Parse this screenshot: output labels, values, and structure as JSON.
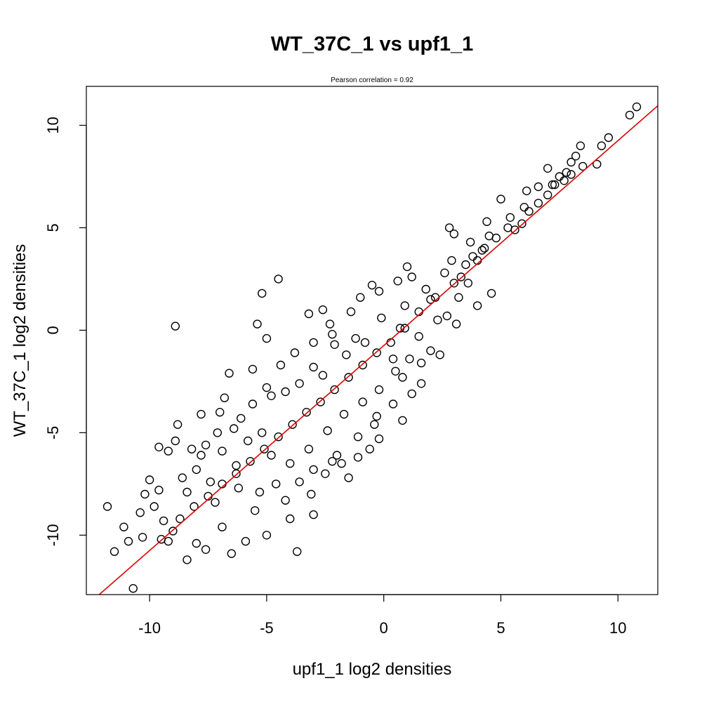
{
  "chart_data": {
    "type": "scatter",
    "title": "WT_37C_1 vs upf1_1",
    "subtitle": "Pearson correlation =  0.92",
    "xlabel": "upf1_1 log2 densities",
    "ylabel": "WT_37C_1 log2 densities",
    "xlim": [
      -12.7,
      11.7
    ],
    "ylim": [
      -12.9,
      11.9
    ],
    "x_ticks": [
      -10,
      -5,
      0,
      5,
      10
    ],
    "x_tick_labels": [
      "-10",
      "-5",
      "0",
      "5",
      "10"
    ],
    "y_ticks": [
      -10,
      -5,
      0,
      5,
      10
    ],
    "y_tick_labels": [
      "-10",
      "-5",
      "0",
      "5",
      "10"
    ],
    "grid": false,
    "point_style": "open-circle",
    "point_color": "#000000",
    "fit_line": {
      "color": "#dd0000",
      "slope": 1.0,
      "intercept": -0.75
    },
    "points": [
      [
        10.8,
        10.9
      ],
      [
        10.5,
        10.5
      ],
      [
        9.6,
        9.4
      ],
      [
        9.3,
        9.0
      ],
      [
        9.1,
        8.1
      ],
      [
        8.4,
        9.0
      ],
      [
        8.2,
        8.5
      ],
      [
        8.0,
        8.2
      ],
      [
        7.8,
        7.7
      ],
      [
        8.5,
        8.0
      ],
      [
        7.5,
        7.5
      ],
      [
        7.0,
        7.9
      ],
      [
        6.6,
        7.0
      ],
      [
        6.1,
        6.8
      ],
      [
        7.2,
        7.1
      ],
      [
        5.0,
        6.4
      ],
      [
        5.9,
        5.2
      ],
      [
        4.5,
        4.6
      ],
      [
        4.3,
        4.0
      ],
      [
        3.8,
        3.6
      ],
      [
        2.8,
        5.0
      ],
      [
        3.0,
        4.7
      ],
      [
        4.0,
        3.4
      ],
      [
        3.6,
        2.3
      ],
      [
        4.6,
        1.8
      ],
      [
        4.0,
        1.2
      ],
      [
        3.2,
        1.6
      ],
      [
        2.7,
        0.7
      ],
      [
        2.3,
        0.5
      ],
      [
        2.0,
        1.5
      ],
      [
        1.0,
        3.1
      ],
      [
        0.6,
        2.4
      ],
      [
        -0.2,
        1.9
      ],
      [
        -0.5,
        2.2
      ],
      [
        -1.0,
        1.6
      ],
      [
        1.2,
        2.6
      ],
      [
        -4.5,
        2.5
      ],
      [
        -5.2,
        1.8
      ],
      [
        -5.4,
        0.3
      ],
      [
        -8.9,
        0.2
      ],
      [
        -2.6,
        1.0
      ],
      [
        -3.2,
        0.8
      ],
      [
        -5.0,
        -0.4
      ],
      [
        -2.2,
        -0.2
      ],
      [
        0.7,
        0.1
      ],
      [
        1.5,
        -0.3
      ],
      [
        2.0,
        -1.0
      ],
      [
        1.6,
        -1.6
      ],
      [
        0.4,
        -1.4
      ],
      [
        -0.8,
        -0.6
      ],
      [
        -6.6,
        -2.1
      ],
      [
        -5.6,
        -1.9
      ],
      [
        -6.8,
        -3.3
      ],
      [
        -7.8,
        -4.1
      ],
      [
        -8.8,
        -4.6
      ],
      [
        -9.6,
        -5.7
      ],
      [
        -9.2,
        -5.9
      ],
      [
        -8.9,
        -5.4
      ],
      [
        -8.2,
        -5.8
      ],
      [
        -10.0,
        -7.3
      ],
      [
        -9.6,
        -7.8
      ],
      [
        -10.2,
        -8.0
      ],
      [
        -9.8,
        -8.6
      ],
      [
        -10.4,
        -8.9
      ],
      [
        -9.4,
        -9.3
      ],
      [
        -9.0,
        -9.8
      ],
      [
        -9.5,
        -10.2
      ],
      [
        -10.3,
        -10.1
      ],
      [
        -10.9,
        -10.3
      ],
      [
        -11.1,
        -9.6
      ],
      [
        -11.8,
        -8.6
      ],
      [
        -11.5,
        -10.8
      ],
      [
        -10.7,
        -12.6
      ],
      [
        -9.2,
        -10.3
      ],
      [
        -8.4,
        -11.2
      ],
      [
        -8.0,
        -10.4
      ],
      [
        -7.6,
        -10.7
      ],
      [
        -6.5,
        -10.9
      ],
      [
        -5.9,
        -10.3
      ],
      [
        -5.0,
        -10.0
      ],
      [
        -3.7,
        -10.8
      ],
      [
        -3.0,
        -9.0
      ],
      [
        -4.0,
        -9.2
      ],
      [
        -5.5,
        -8.8
      ],
      [
        -6.9,
        -9.6
      ],
      [
        -7.2,
        -8.4
      ],
      [
        -6.2,
        -7.7
      ],
      [
        -4.6,
        -7.5
      ],
      [
        -3.6,
        -7.4
      ],
      [
        -2.5,
        -7.0
      ],
      [
        -1.5,
        -7.2
      ],
      [
        -1.8,
        -6.5
      ],
      [
        -0.6,
        -5.8
      ],
      [
        0.4,
        -3.6
      ],
      [
        1.2,
        -3.1
      ],
      [
        0.8,
        -2.3
      ],
      [
        -0.3,
        -4.2
      ],
      [
        -0.4,
        -4.6
      ],
      [
        -1.1,
        -5.2
      ],
      [
        -2.0,
        -6.1
      ],
      [
        -3.0,
        -6.8
      ],
      [
        -4.0,
        -6.5
      ],
      [
        -4.8,
        -6.1
      ],
      [
        -5.8,
        -5.4
      ],
      [
        -6.4,
        -4.8
      ],
      [
        -7.0,
        -4.0
      ],
      [
        -7.6,
        -5.6
      ],
      [
        -6.9,
        -5.9
      ],
      [
        -8.0,
        -6.8
      ],
      [
        -8.6,
        -7.2
      ],
      [
        -7.4,
        -7.4
      ],
      [
        -6.3,
        -6.6
      ],
      [
        -5.2,
        -5.0
      ],
      [
        -4.8,
        -3.2
      ],
      [
        -3.6,
        -2.6
      ],
      [
        -3.0,
        -1.8
      ],
      [
        -2.6,
        -2.2
      ],
      [
        -1.6,
        -1.2
      ],
      [
        -2.1,
        -0.7
      ],
      [
        -1.2,
        -0.4
      ],
      [
        -0.1,
        0.6
      ],
      [
        0.9,
        1.2
      ],
      [
        1.8,
        2.0
      ],
      [
        2.6,
        2.8
      ],
      [
        3.3,
        2.6
      ],
      [
        2.9,
        3.4
      ],
      [
        3.7,
        4.3
      ],
      [
        4.4,
        5.3
      ],
      [
        5.3,
        5.0
      ],
      [
        5.6,
        4.9
      ],
      [
        6.2,
        5.8
      ],
      [
        6.6,
        6.2
      ],
      [
        7.0,
        6.6
      ],
      [
        7.3,
        7.1
      ],
      [
        7.7,
        7.3
      ],
      [
        8.0,
        7.6
      ],
      [
        6.0,
        6.0
      ],
      [
        5.4,
        5.5
      ],
      [
        4.8,
        4.5
      ],
      [
        4.2,
        3.9
      ],
      [
        3.5,
        3.2
      ],
      [
        3.0,
        2.3
      ],
      [
        2.2,
        1.6
      ],
      [
        1.5,
        0.9
      ],
      [
        0.9,
        0.1
      ],
      [
        0.3,
        -0.6
      ],
      [
        -0.3,
        -1.1
      ],
      [
        -0.9,
        -1.7
      ],
      [
        -1.5,
        -2.3
      ],
      [
        -2.1,
        -2.9
      ],
      [
        -2.7,
        -3.5
      ],
      [
        -3.3,
        -4.0
      ],
      [
        -3.9,
        -4.6
      ],
      [
        -4.5,
        -5.2
      ],
      [
        -5.1,
        -5.8
      ],
      [
        -5.7,
        -6.4
      ],
      [
        -6.3,
        -7.0
      ],
      [
        -6.9,
        -7.5
      ],
      [
        -7.5,
        -8.1
      ],
      [
        -8.1,
        -8.6
      ],
      [
        -8.7,
        -9.2
      ],
      [
        -3.2,
        -5.8
      ],
      [
        -2.4,
        -4.9
      ],
      [
        -1.7,
        -4.1
      ],
      [
        -0.9,
        -3.5
      ],
      [
        -0.2,
        -2.9
      ],
      [
        0.5,
        -2.0
      ],
      [
        1.1,
        -1.4
      ],
      [
        -4.2,
        -3.0
      ],
      [
        -5.0,
        -2.8
      ],
      [
        -4.4,
        -1.7
      ],
      [
        -3.8,
        -1.1
      ],
      [
        -3.0,
        -0.6
      ],
      [
        -2.3,
        0.3
      ],
      [
        -1.4,
        0.9
      ],
      [
        -5.6,
        -3.6
      ],
      [
        -6.1,
        -4.3
      ],
      [
        -7.1,
        -5.0
      ],
      [
        -7.8,
        -6.1
      ],
      [
        -8.4,
        -7.9
      ],
      [
        -5.3,
        -7.9
      ],
      [
        -4.2,
        -8.3
      ],
      [
        -3.1,
        -8.0
      ],
      [
        -2.2,
        -6.4
      ],
      [
        -1.1,
        -6.2
      ],
      [
        -0.2,
        -5.3
      ],
      [
        0.8,
        -4.4
      ],
      [
        1.6,
        -2.6
      ],
      [
        2.4,
        -1.2
      ],
      [
        3.1,
        0.3
      ]
    ]
  }
}
